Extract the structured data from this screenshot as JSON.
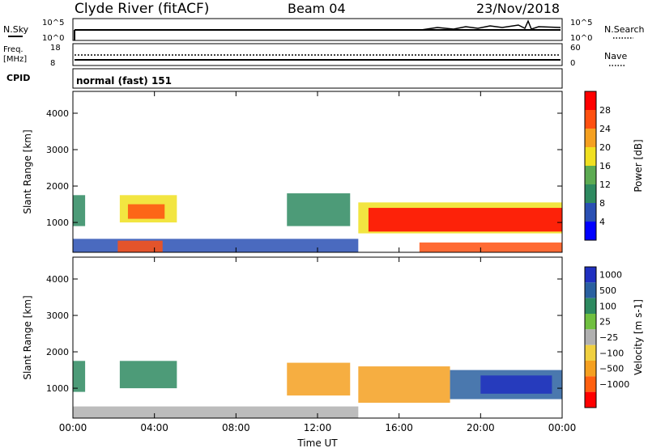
{
  "header": {
    "station": "Clyde River (fitACF)",
    "beam": "Beam 04",
    "date": "23/Nov/2018"
  },
  "status_panels": {
    "nsky_label": "N.Sky",
    "nsky_top": "10^5",
    "nsky_bottom": "10^0",
    "nsearch_label": "N.Search",
    "nsearch_top": "10^5",
    "nsearch_bottom": "10^0",
    "freq_label_1": "Freq.",
    "freq_label_2": "[MHz]",
    "freq_top": "18",
    "freq_bottom": "8",
    "nave_label": "Nave",
    "nave_top": "60",
    "nave_bottom": "0",
    "cpid_label": "CPID",
    "cpid_value": "normal (fast) 151"
  },
  "chart_data": [
    {
      "type": "heatmap",
      "name": "power-panel",
      "ylabel": "Slant Range [km]",
      "xlabel": "",
      "x_ticks": [
        "00:00",
        "04:00",
        "08:00",
        "12:00",
        "16:00",
        "20:00",
        "00:00"
      ],
      "y_ticks": [
        1000,
        2000,
        3000,
        4000
      ],
      "ylim": [
        180,
        4600
      ],
      "colorbar_label": "Power [dB]",
      "colorbar_ticks": [
        4,
        8,
        12,
        16,
        20,
        24,
        28
      ],
      "colorbar_colors": [
        "#0000ff",
        "#2a50b4",
        "#2e8a60",
        "#5cab52",
        "#f0e020",
        "#f5a020",
        "#ff5010",
        "#ff0000"
      ],
      "regions": [
        {
          "t0": 0.0,
          "t1": 0.6,
          "r0": 900,
          "r1": 1750,
          "v": 8
        },
        {
          "t0": 2.3,
          "t1": 5.1,
          "r0": 1000,
          "r1": 1750,
          "v": 18
        },
        {
          "t0": 2.7,
          "t1": 4.5,
          "r0": 1100,
          "r1": 1500,
          "v": 26
        },
        {
          "t0": 0.0,
          "t1": 14.0,
          "r0": 180,
          "r1": 550,
          "v": 6
        },
        {
          "t0": 2.2,
          "t1": 4.4,
          "r0": 180,
          "r1": 500,
          "v": 24
        },
        {
          "t0": 10.5,
          "t1": 13.6,
          "r0": 900,
          "r1": 1800,
          "v": 10
        },
        {
          "t0": 14.0,
          "t1": 24.0,
          "r0": 700,
          "r1": 1550,
          "v": 18
        },
        {
          "t0": 14.5,
          "t1": 24.0,
          "r0": 750,
          "r1": 1400,
          "v": 28
        },
        {
          "t0": 17.0,
          "t1": 24.0,
          "r0": 180,
          "r1": 450,
          "v": 26
        }
      ]
    },
    {
      "type": "heatmap",
      "name": "velocity-panel",
      "ylabel": "Slant Range [km]",
      "xlabel": "Time UT",
      "x_ticks": [
        "00:00",
        "04:00",
        "08:00",
        "12:00",
        "16:00",
        "20:00",
        "00:00"
      ],
      "y_ticks": [
        1000,
        2000,
        3000,
        4000
      ],
      "ylim": [
        180,
        4600
      ],
      "colorbar_label": "Velocity [m s-1]",
      "colorbar_ticks": [
        "1000",
        "500",
        "100",
        "25",
        "−25",
        "−100",
        "−500",
        "−1000"
      ],
      "colorbar_colors": [
        "#2030c0",
        "#2a60a0",
        "#2e8a60",
        "#70c040",
        "#b0b0b0",
        "#f0d040",
        "#f5a020",
        "#ff6010",
        "#ff0000"
      ],
      "regions": [
        {
          "t0": 0.0,
          "t1": 0.6,
          "r0": 900,
          "r1": 1750,
          "v": 300
        },
        {
          "t0": 2.3,
          "t1": 5.1,
          "r0": 1000,
          "r1": 1750,
          "v": 100
        },
        {
          "t0": 0.0,
          "t1": 14.0,
          "r0": 180,
          "r1": 500,
          "v": 0
        },
        {
          "t0": 10.5,
          "t1": 13.6,
          "r0": 800,
          "r1": 1700,
          "v": -300
        },
        {
          "t0": 14.0,
          "t1": 18.5,
          "r0": 600,
          "r1": 1600,
          "v": -300
        },
        {
          "t0": 18.5,
          "t1": 24.0,
          "r0": 700,
          "r1": 1500,
          "v": 700
        },
        {
          "t0": 20.0,
          "t1": 23.5,
          "r0": 850,
          "r1": 1350,
          "v": 1000
        }
      ]
    }
  ]
}
